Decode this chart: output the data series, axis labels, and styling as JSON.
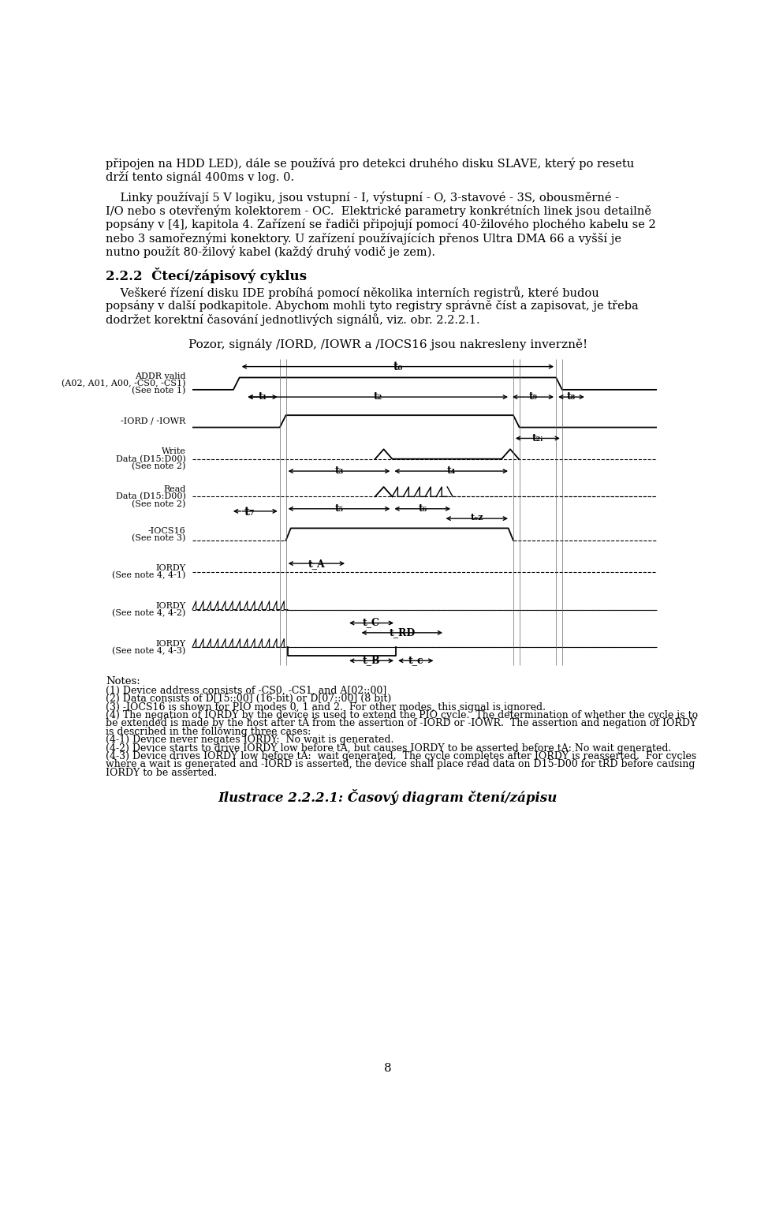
{
  "page_background": "#ffffff",
  "text_color": "#000000",
  "top_text_lines": [
    "připojen na HDD LED), dále se používá pro detekci druhého disku SLAVE, který po resetu",
    "drží tento signál 400ms v log. 0."
  ],
  "para1_lines": [
    "    Linky používají 5 V logiku, jsou vstupní - I, výstupní - O, 3-stavové - 3S, obousměrné -",
    "I/O nebo s otevřeným kolektorem - OC.  Elektrické parametry konkrétních linek jsou detailně",
    "popsány v [4], kapitola 4. Zařízení se řadiči připojují pomocí 40-žilového plochého kabelu se 2",
    "nebo 3 samořeznými konektory. U zařízení používajících přenos Ultra DMA 66 a vyšší je",
    "nutno použít 80-žilový kabel (každý druhý vodič je zem)."
  ],
  "section_title": "2.2.2  Čtecí/zápisový cyklus",
  "para2_lines": [
    "    Veškeré řízení disku IDE probíhá pomocí několika interních registrů, které budou",
    "popsány v další podkapitole. Abychom mohli tyto registry správně číst a zapisovat, je třeba",
    "dodržet korektní časování jednotlivých signálů, viz. obr. 2.2.2.1."
  ],
  "notice": "Pozor, signály /IORD, /IOWR a /IOCS16 jsou nakresleny inverzně!",
  "notes_header": "Notes:",
  "notes": [
    "(1) Device address consists of -CS0, -CS1, and A[02::00]",
    "(2) Data consists of D[15::00] (16-bit) or D[07::00] (8 bit)",
    "(3) -IOCS16 is shown for PIO modes 0, 1 and 2.  For other modes, this signal is ignored.",
    "(4) The negation of IORDY by the device is used to extend the PIO cycle.  The determination of whether the cycle is to",
    "be extended is made by the host after tA from the assertion of -IORD or -IOWR.  The assertion and negation of IORDY",
    "is described in the following three cases:",
    "(4-1) Device never negates IORDY:  No wait is generated.",
    "(4-2) Device starts to drive IORDY low before tA, but causes IORDY to be asserted before tA: No wait generated.",
    "(4-3) Device drives IORDY low before tA:  wait generated.  The cycle completes after IORDY is reasserted.  For cycles",
    "where a wait is generated and -IORD is asserted, the device shall place read data on D15-D00 for tRD before causing",
    "IORDY to be asserted."
  ],
  "caption": "Ilustrace 2.2.2.1: Časový diagram čtení/zápisu",
  "page_number": "8"
}
